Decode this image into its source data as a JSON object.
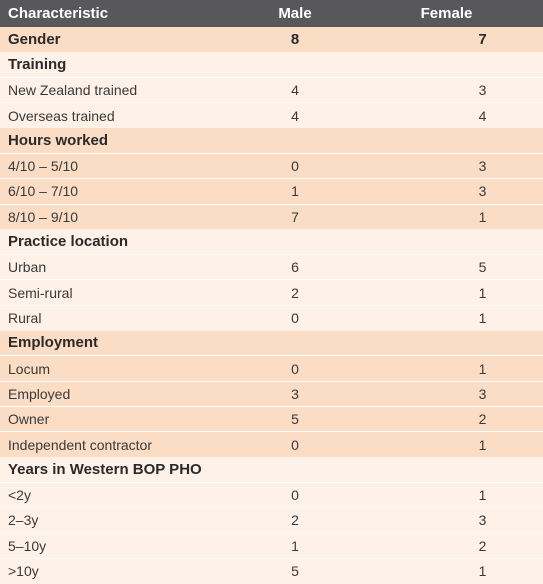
{
  "header": {
    "characteristic": "Characteristic",
    "male": "Male",
    "female": "Female"
  },
  "rows": [
    {
      "label": "Gender",
      "male": "8",
      "female": "7",
      "section": true,
      "shade": true
    },
    {
      "label": "Training",
      "male": "",
      "female": "",
      "section": true,
      "shade": false
    },
    {
      "label": "New Zealand trained",
      "male": "4",
      "female": "3",
      "section": false,
      "shade": false
    },
    {
      "label": "Overseas trained",
      "male": "4",
      "female": "4",
      "section": false,
      "shade": false
    },
    {
      "label": "Hours worked",
      "male": "",
      "female": "",
      "section": true,
      "shade": true
    },
    {
      "label": "4/10 – 5/10",
      "male": "0",
      "female": "3",
      "section": false,
      "shade": true
    },
    {
      "label": "6/10 – 7/10",
      "male": "1",
      "female": "3",
      "section": false,
      "shade": true
    },
    {
      "label": "8/10 – 9/10",
      "male": "7",
      "female": "1",
      "section": false,
      "shade": true
    },
    {
      "label": "Practice location",
      "male": "",
      "female": "",
      "section": true,
      "shade": false
    },
    {
      "label": "Urban",
      "male": "6",
      "female": "5",
      "section": false,
      "shade": false
    },
    {
      "label": "Semi-rural",
      "male": "2",
      "female": "1",
      "section": false,
      "shade": false
    },
    {
      "label": "Rural",
      "male": "0",
      "female": "1",
      "section": false,
      "shade": false
    },
    {
      "label": "Employment",
      "male": "",
      "female": "",
      "section": true,
      "shade": true
    },
    {
      "label": "Locum",
      "male": "0",
      "female": "1",
      "section": false,
      "shade": true
    },
    {
      "label": "Employed",
      "male": "3",
      "female": "3",
      "section": false,
      "shade": true
    },
    {
      "label": "Owner",
      "male": "5",
      "female": "2",
      "section": false,
      "shade": true
    },
    {
      "label": "Independent contractor",
      "male": "0",
      "female": "1",
      "section": false,
      "shade": true
    },
    {
      "label": "Years in Western BOP PHO",
      "male": "",
      "female": "",
      "section": true,
      "shade": false
    },
    {
      "label": "<2y",
      "male": "0",
      "female": "1",
      "section": false,
      "shade": false
    },
    {
      "label": "2–3y",
      "male": "2",
      "female": "3",
      "section": false,
      "shade": false
    },
    {
      "label": "5–10y",
      "male": "1",
      "female": "2",
      "section": false,
      "shade": false
    },
    {
      "label": ">10y",
      "male": "5",
      "female": "1",
      "section": false,
      "shade": false
    }
  ]
}
